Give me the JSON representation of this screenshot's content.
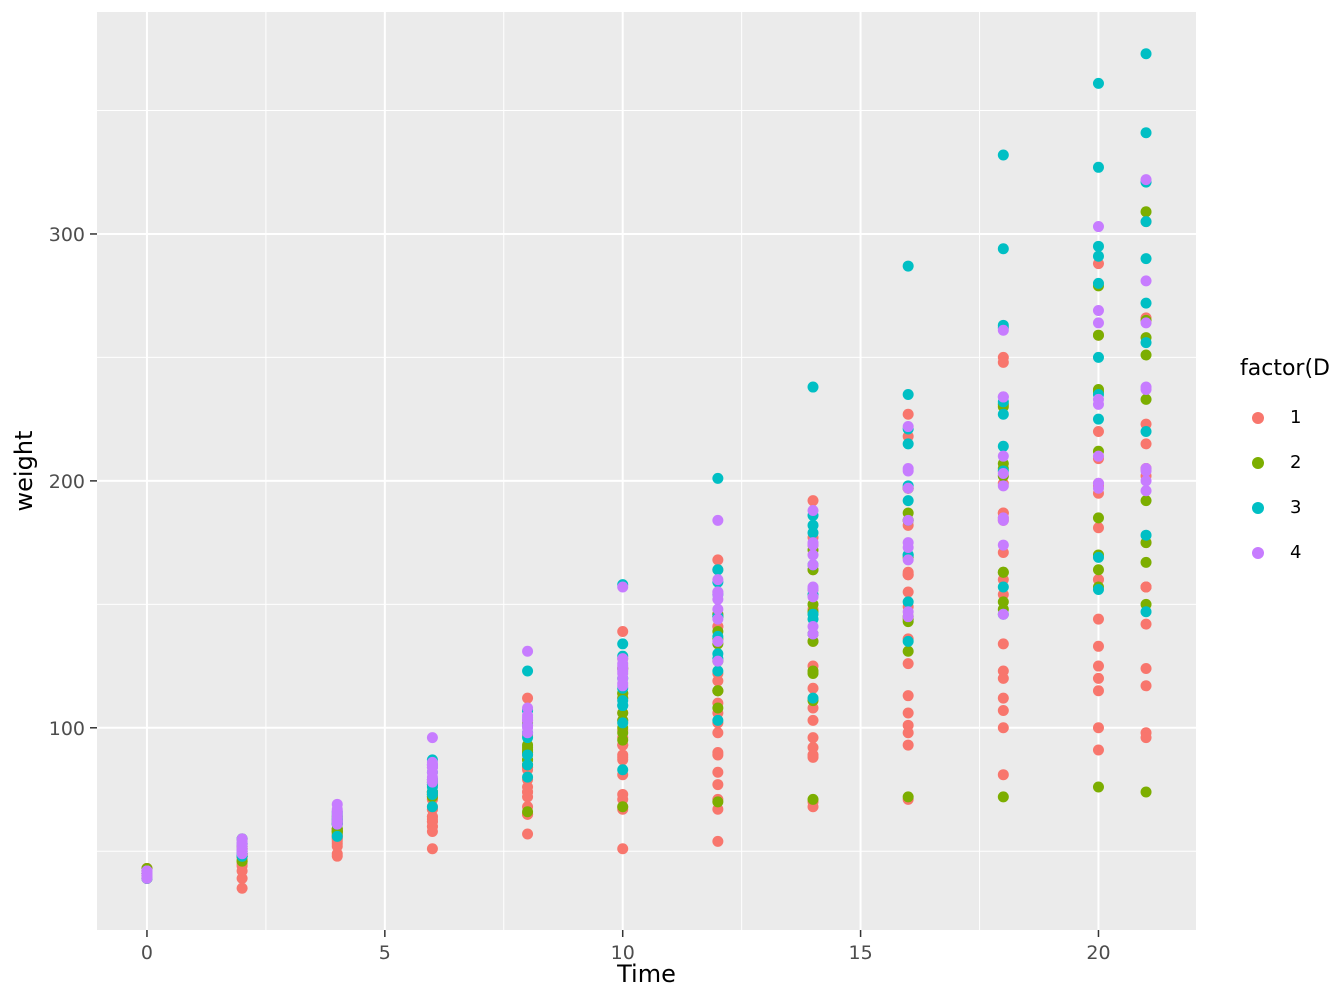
{
  "chart_data": {
    "type": "scatter",
    "title": "",
    "xlabel": "Time",
    "ylabel": "weight",
    "x_ticks": [
      0,
      5,
      10,
      15,
      20
    ],
    "x_minor": [
      2.5,
      7.5,
      12.5,
      17.5
    ],
    "y_ticks": [
      100,
      200,
      300
    ],
    "y_minor": [
      50,
      150,
      250,
      350
    ],
    "xlim": [
      -1.05,
      22.05
    ],
    "ylim": [
      18.1,
      389.9
    ],
    "grid": true,
    "panel_bg": "#EBEBEB",
    "grid_color": "#FFFFFF",
    "tick_color": "#333333",
    "tick_label_color": "#4D4D4D",
    "legend": {
      "title": "factor(D",
      "position": "right",
      "entries": [
        {
          "label": "1",
          "color": "#F8766D"
        },
        {
          "label": "2",
          "color": "#7CAE00"
        },
        {
          "label": "3",
          "color": "#00BFC4"
        },
        {
          "label": "4",
          "color": "#C77CFF"
        }
      ]
    },
    "times": [
      0,
      2,
      4,
      6,
      8,
      10,
      12,
      14,
      16,
      18,
      20,
      21
    ],
    "series": [
      {
        "name": "1",
        "color": "#F8766D",
        "chick_weights": [
          [
            42,
            51,
            59,
            64,
            76,
            93,
            106,
            125,
            149,
            171,
            199,
            205
          ],
          [
            40,
            49,
            58,
            72,
            84,
            103,
            122,
            138,
            162,
            187,
            209,
            215
          ],
          [
            43,
            39,
            55,
            67,
            84,
            99,
            115,
            138,
            163,
            187,
            198,
            202
          ],
          [
            42,
            49,
            56,
            67,
            74,
            87,
            102,
            108,
            136,
            154,
            160,
            157
          ],
          [
            41,
            42,
            48,
            60,
            79,
            106,
            141,
            164,
            197,
            199,
            220,
            223
          ],
          [
            41,
            49,
            59,
            74,
            97,
            124,
            141,
            148,
            155,
            160,
            160,
            157
          ],
          [
            41,
            49,
            57,
            71,
            89,
            112,
            146,
            174,
            218,
            250,
            288,
            305
          ],
          [
            42,
            50,
            61,
            71,
            84,
            93,
            110,
            116,
            126,
            134,
            125
          ],
          [
            42,
            51,
            59,
            68,
            85,
            96,
            90,
            92,
            93,
            100,
            100,
            98
          ],
          [
            41,
            44,
            52,
            63,
            74,
            81,
            89,
            96,
            101,
            112,
            120,
            124
          ],
          [
            43,
            51,
            63,
            84,
            112,
            139,
            168,
            177,
            182,
            184,
            181,
            175
          ],
          [
            41,
            49,
            56,
            62,
            72,
            88,
            119,
            135,
            162,
            185,
            195,
            205
          ],
          [
            41,
            48,
            53,
            60,
            65,
            67,
            71,
            70,
            71,
            81,
            91,
            96
          ],
          [
            41,
            49,
            62,
            79,
            101,
            128,
            164,
            192,
            227,
            248,
            259,
            266
          ],
          [
            41,
            49,
            56,
            64,
            68,
            68,
            67,
            68
          ],
          [
            41,
            45,
            49,
            51,
            57,
            51,
            54
          ],
          [
            42,
            51,
            61,
            72,
            83,
            89,
            98,
            103,
            113,
            123,
            133,
            142
          ],
          [
            39,
            35
          ],
          [
            43,
            48,
            55,
            62,
            65,
            71,
            82,
            88,
            106,
            120,
            144,
            157
          ],
          [
            41,
            47,
            54,
            58,
            65,
            73,
            77,
            89,
            98,
            107,
            115,
            117
          ]
        ]
      },
      {
        "name": "2",
        "color": "#7CAE00",
        "chick_weights": [
          [
            40,
            49,
            58,
            74,
            91,
            112,
            139,
            172,
            184,
            202,
            237,
            258
          ],
          [
            41,
            55,
            64,
            77,
            90,
            95,
            108,
            111,
            131,
            148,
            164,
            167
          ],
          [
            43,
            52,
            61,
            73,
            90,
            103,
            127,
            135,
            145,
            163,
            170,
            175
          ],
          [
            42,
            52,
            58,
            74,
            66,
            68,
            70,
            71,
            72,
            72,
            76,
            74
          ],
          [
            40,
            49,
            62,
            78,
            102,
            124,
            146,
            164,
            197,
            231,
            259,
            265
          ],
          [
            42,
            48,
            57,
            74,
            93,
            114,
            136,
            147,
            169,
            205,
            236,
            251
          ],
          [
            39,
            46,
            58,
            73,
            87,
            100,
            115,
            123,
            144,
            163,
            185,
            192
          ],
          [
            39,
            46,
            58,
            73,
            92,
            114,
            145,
            156,
            184,
            207,
            212,
            233
          ],
          [
            39,
            48,
            59,
            74,
            87,
            106,
            134,
            150,
            187,
            230,
            279,
            309
          ],
          [
            42,
            48,
            59,
            72,
            85,
            98,
            115,
            122,
            143,
            151,
            157,
            150
          ]
        ]
      },
      {
        "name": "3",
        "color": "#00BFC4",
        "chick_weights": [
          [
            42,
            53,
            62,
            73,
            85,
            102,
            123,
            138,
            170,
            204,
            235,
            256
          ],
          [
            41,
            49,
            65,
            82,
            107,
            129,
            159,
            179,
            221,
            263,
            291,
            305
          ],
          [
            39,
            50,
            63,
            77,
            96,
            111,
            137,
            144,
            151,
            146,
            156,
            147
          ],
          [
            41,
            49,
            63,
            85,
            107,
            134,
            164,
            186,
            235,
            294,
            327,
            341
          ],
          [
            41,
            53,
            64,
            87,
            123,
            158,
            201,
            238,
            287,
            332,
            361,
            373
          ],
          [
            39,
            48,
            61,
            76,
            98,
            116,
            145,
            166,
            198,
            227,
            225,
            220
          ],
          [
            41,
            48,
            56,
            68,
            80,
            83,
            103,
            112,
            135,
            157,
            169,
            178
          ],
          [
            41,
            49,
            61,
            74,
            98,
            109,
            128,
            154,
            192,
            232,
            280,
            290
          ],
          [
            42,
            50,
            61,
            78,
            89,
            109,
            130,
            146,
            170,
            214,
            250,
            272
          ],
          [
            41,
            55,
            66,
            79,
            101,
            120,
            154,
            182,
            215,
            262,
            295,
            321
          ]
        ]
      },
      {
        "name": "4",
        "color": "#C77CFF",
        "chick_weights": [
          [
            42,
            51,
            66,
            85,
            103,
            124,
            155,
            153,
            175,
            184,
            199,
            204
          ],
          [
            42,
            49,
            63,
            84,
            103,
            126,
            160,
            174,
            204,
            234,
            269,
            281
          ],
          [
            42,
            55,
            69,
            96,
            131,
            157,
            184,
            188,
            197,
            198,
            199,
            200
          ],
          [
            42,
            51,
            65,
            86,
            103,
            118,
            127,
            138,
            145,
            146
          ],
          [
            41,
            50,
            61,
            78,
            98,
            117,
            135,
            141,
            147,
            174,
            197,
            196
          ],
          [
            40,
            52,
            62,
            82,
            101,
            120,
            144,
            156,
            173,
            210,
            231,
            238
          ],
          [
            41,
            53,
            66,
            79,
            100,
            123,
            148,
            157,
            168,
            185,
            210,
            205
          ],
          [
            39,
            50,
            62,
            80,
            104,
            125,
            154,
            170,
            222,
            261,
            303,
            322
          ],
          [
            40,
            53,
            64,
            85,
            108,
            128,
            152,
            166,
            184,
            203,
            233,
            237
          ],
          [
            41,
            54,
            67,
            84,
            105,
            122,
            155,
            175,
            205,
            234,
            264,
            264
          ]
        ]
      }
    ]
  }
}
